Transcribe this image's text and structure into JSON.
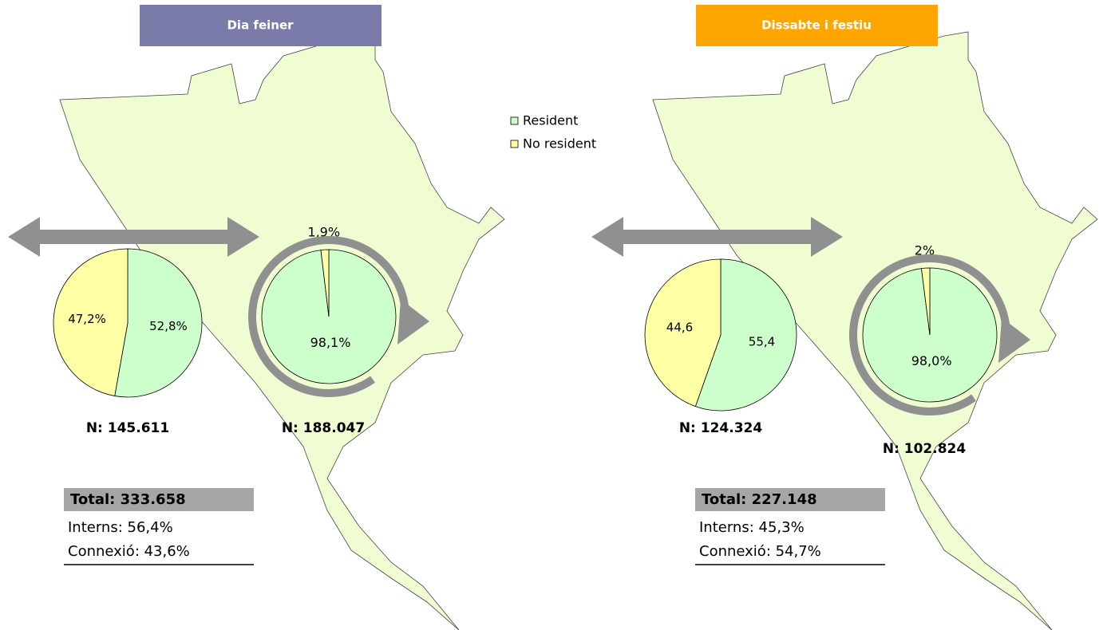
{
  "legend": [
    {
      "name": "Resident",
      "color": "#ccffcc"
    },
    {
      "name": "No resident",
      "color": "#ffffa6"
    }
  ],
  "panels": [
    {
      "title": "Dia feiner",
      "title_color": "#7b7baa",
      "connection": {
        "type": "pie",
        "values": [
          52.8,
          47.2
        ],
        "value_labels": [
          "52,8%",
          "47,2%"
        ],
        "n": "N: 145.611"
      },
      "internal": {
        "type": "pie",
        "values": [
          98.1,
          1.9
        ],
        "value_labels": [
          "98,1%",
          "1,9%"
        ],
        "n": "N: 188.047"
      },
      "total": "Total: 333.658",
      "interns": "Interns: 56,4%",
      "connexio": "Connexió: 43,6%"
    },
    {
      "title": "Dissabte i festiu",
      "title_color": "#ffa500",
      "connection": {
        "type": "pie",
        "values": [
          55.4,
          44.6
        ],
        "value_labels": [
          "55,4",
          "44,6"
        ],
        "n": "N: 124.324"
      },
      "internal": {
        "type": "pie",
        "values": [
          98.0,
          2
        ],
        "value_labels": [
          "98,0%",
          "2%"
        ],
        "n": "N: 102.824"
      },
      "total": "Total: 227.148",
      "interns": "Interns: 45,3%",
      "connexio": "Connexió: 54,7%"
    }
  ]
}
